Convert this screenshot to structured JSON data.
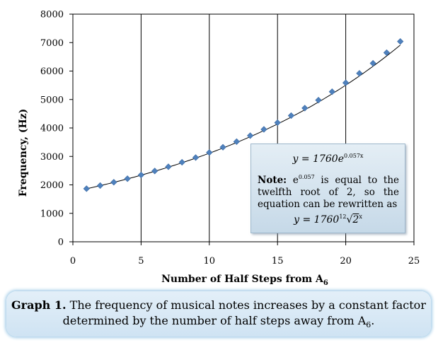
{
  "chart_data": {
    "type": "scatter",
    "xlabel": "Number of Half Steps from A",
    "xlabel_sub": "6",
    "ylabel": "Frequency, (Hz)",
    "xlim": [
      0,
      25
    ],
    "ylim": [
      0,
      8000
    ],
    "xticks": [
      0,
      5,
      10,
      15,
      20,
      25
    ],
    "yticks": [
      0,
      1000,
      2000,
      3000,
      4000,
      5000,
      6000,
      7000,
      8000
    ],
    "grid": "vertical",
    "series": [
      {
        "x": [
          1,
          2,
          3,
          4,
          5,
          6,
          7,
          8,
          9,
          10,
          11,
          12,
          13,
          14,
          15,
          16,
          17,
          18,
          19,
          20,
          21,
          22,
          23,
          24
        ],
        "y": [
          1865,
          1976,
          2093,
          2217,
          2349,
          2489,
          2637,
          2794,
          2960,
          3136,
          3322,
          3520,
          3729,
          3951,
          4186,
          4435,
          4699,
          4978,
          5274,
          5588,
          5920,
          6272,
          6645,
          7040
        ],
        "color": "#4f81bd",
        "marker": "diamond"
      }
    ],
    "trendline": {
      "a": 1760,
      "b": 0.057,
      "color": "#000000"
    }
  },
  "note": {
    "equation": "y = 1760e",
    "equation_exp": "0.057x",
    "label": "Note:",
    "text_e": "e",
    "text_exp": "0.057",
    "text": " is equal to the twelfth root of 2, so the equation can be rewritten as",
    "equation2": "y = 1760",
    "root_index": "12",
    "radicand": "2",
    "radicand_exp": "x"
  },
  "caption": {
    "label": "Graph 1.",
    "text": " The frequency of musical notes increases by a constant factor determined by the number of half steps away from A",
    "sub": "6",
    "end": "."
  }
}
